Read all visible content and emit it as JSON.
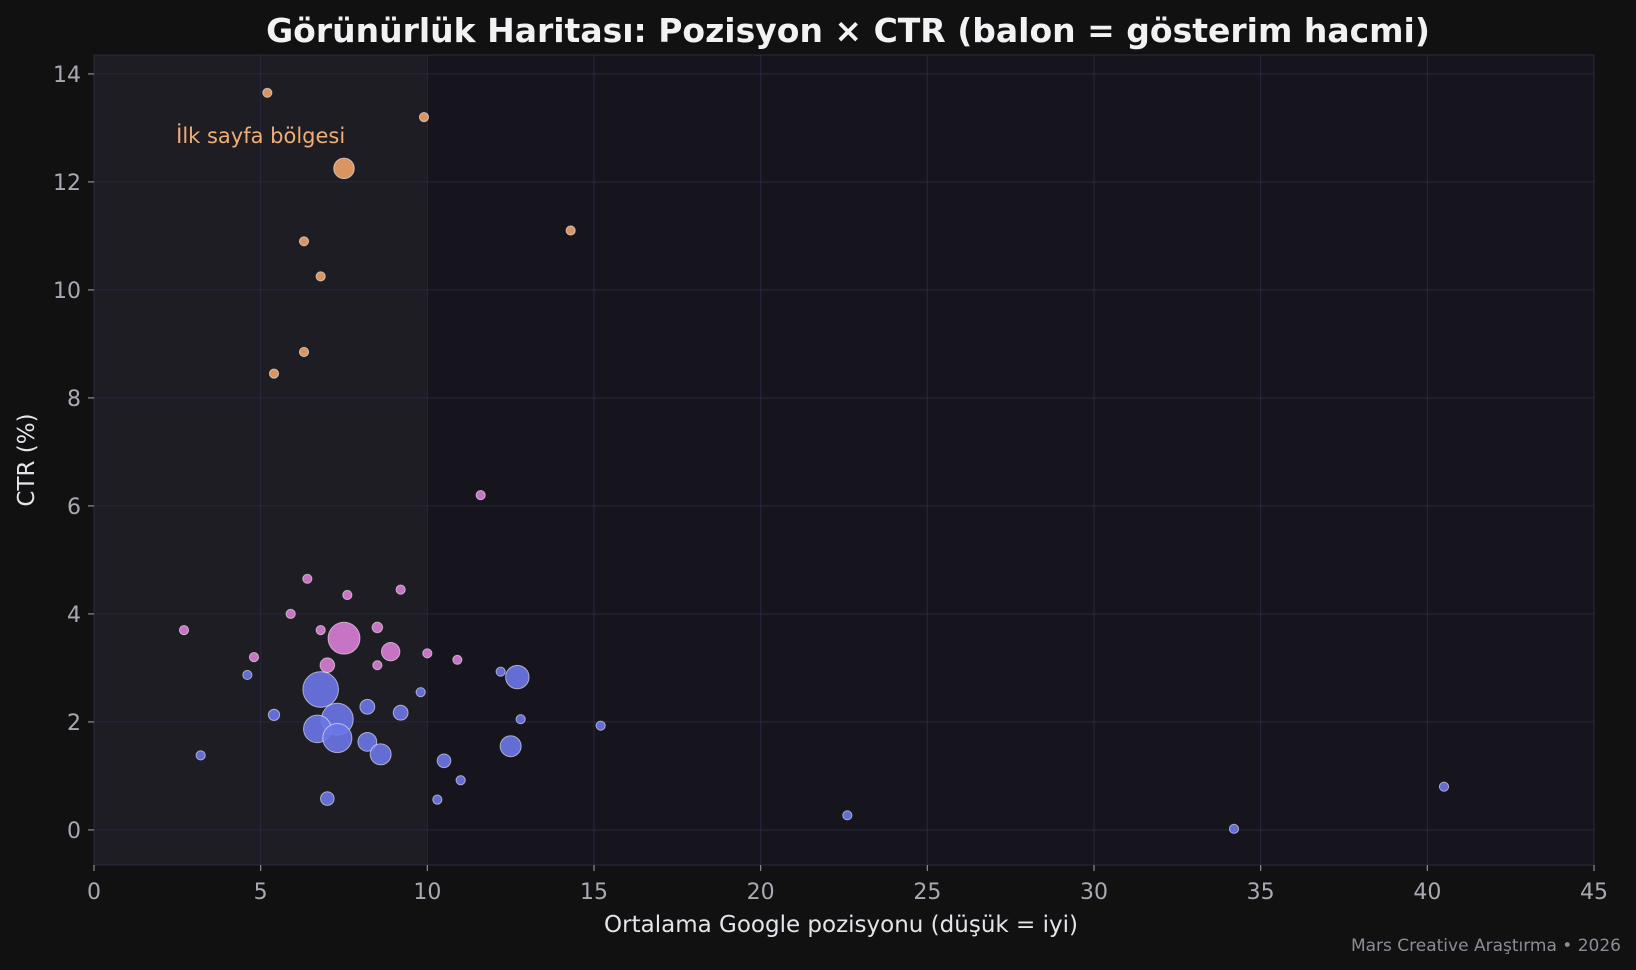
{
  "chart_data": {
    "type": "scatter",
    "title": "Görünürlük Haritası: Pozisyon × CTR (balon = gösterim hacmi)",
    "xlabel": "Ortalama Google pozisyonu (düşük = iyi)",
    "ylabel": "CTR (%)",
    "xlim": [
      0,
      45
    ],
    "ylim": [
      -0.65,
      14.35
    ],
    "xticks": [
      0,
      5,
      10,
      15,
      20,
      25,
      30,
      35,
      40,
      45
    ],
    "yticks": [
      0,
      2,
      4,
      6,
      8,
      10,
      12,
      14
    ],
    "grid": true,
    "size_encoding": "gösterim hacmi",
    "highlight_region": {
      "x": [
        0,
        10
      ],
      "label": "İlk sayfa bölgesi"
    },
    "credit": "Mars Creative Araştırma • 2026",
    "colors": {
      "background": "#111112",
      "plot_bg": "#16151d",
      "highlight_bg": "#1e1d24",
      "grid": "#272741",
      "orange": "#eda46a",
      "pink": "#d97ed6",
      "blue": "#6b77e8"
    },
    "series": [
      {
        "color": "#eda46a",
        "points": [
          {
            "x": 5.2,
            "y": 13.65,
            "size": 1
          },
          {
            "x": 9.9,
            "y": 13.2,
            "size": 1
          },
          {
            "x": 7.5,
            "y": 12.25,
            "size": 5
          },
          {
            "x": 14.3,
            "y": 11.1,
            "size": 1
          },
          {
            "x": 6.3,
            "y": 10.9,
            "size": 1
          },
          {
            "x": 6.8,
            "y": 10.25,
            "size": 1
          },
          {
            "x": 6.3,
            "y": 8.85,
            "size": 1
          },
          {
            "x": 5.4,
            "y": 8.45,
            "size": 1
          }
        ]
      },
      {
        "color": "#d97ed6",
        "points": [
          {
            "x": 11.6,
            "y": 6.2,
            "size": 1
          },
          {
            "x": 6.4,
            "y": 4.65,
            "size": 1
          },
          {
            "x": 9.2,
            "y": 4.45,
            "size": 1
          },
          {
            "x": 7.6,
            "y": 4.35,
            "size": 1
          },
          {
            "x": 5.9,
            "y": 4.0,
            "size": 1
          },
          {
            "x": 2.7,
            "y": 3.7,
            "size": 1
          },
          {
            "x": 6.8,
            "y": 3.7,
            "size": 1
          },
          {
            "x": 8.5,
            "y": 3.75,
            "size": 1.3
          },
          {
            "x": 7.5,
            "y": 3.55,
            "size": 12
          },
          {
            "x": 8.9,
            "y": 3.3,
            "size": 4
          },
          {
            "x": 4.8,
            "y": 3.2,
            "size": 1
          },
          {
            "x": 10.0,
            "y": 3.27,
            "size": 1
          },
          {
            "x": 10.9,
            "y": 3.15,
            "size": 1
          },
          {
            "x": 8.5,
            "y": 3.05,
            "size": 1
          },
          {
            "x": 7.0,
            "y": 3.05,
            "size": 2.5
          }
        ]
      },
      {
        "color": "#6b77e8",
        "points": [
          {
            "x": 12.2,
            "y": 2.93,
            "size": 1
          },
          {
            "x": 12.7,
            "y": 2.83,
            "size": 6.5
          },
          {
            "x": 4.6,
            "y": 2.87,
            "size": 1
          },
          {
            "x": 6.8,
            "y": 2.6,
            "size": 15
          },
          {
            "x": 9.8,
            "y": 2.55,
            "size": 1
          },
          {
            "x": 8.2,
            "y": 2.28,
            "size": 2.6
          },
          {
            "x": 9.2,
            "y": 2.17,
            "size": 2.6
          },
          {
            "x": 5.4,
            "y": 2.13,
            "size": 1.5
          },
          {
            "x": 12.8,
            "y": 2.05,
            "size": 1
          },
          {
            "x": 7.3,
            "y": 2.05,
            "size": 12
          },
          {
            "x": 15.2,
            "y": 1.93,
            "size": 1
          },
          {
            "x": 6.7,
            "y": 1.87,
            "size": 9
          },
          {
            "x": 7.3,
            "y": 1.7,
            "size": 10
          },
          {
            "x": 8.2,
            "y": 1.63,
            "size": 4.2
          },
          {
            "x": 12.5,
            "y": 1.55,
            "size": 5.2
          },
          {
            "x": 8.6,
            "y": 1.4,
            "size": 5.2
          },
          {
            "x": 3.2,
            "y": 1.38,
            "size": 1
          },
          {
            "x": 10.5,
            "y": 1.28,
            "size": 2.2
          },
          {
            "x": 11.0,
            "y": 0.92,
            "size": 1
          },
          {
            "x": 40.5,
            "y": 0.8,
            "size": 1
          },
          {
            "x": 7.0,
            "y": 0.58,
            "size": 2.2
          },
          {
            "x": 10.3,
            "y": 0.56,
            "size": 1
          },
          {
            "x": 22.6,
            "y": 0.27,
            "size": 1
          },
          {
            "x": 34.2,
            "y": 0.02,
            "size": 1
          }
        ]
      }
    ]
  }
}
